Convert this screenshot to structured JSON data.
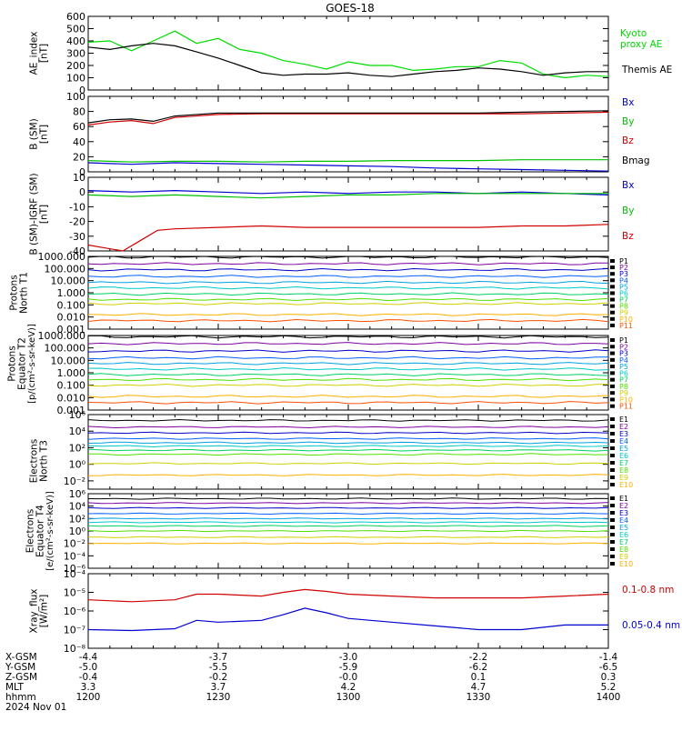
{
  "title": "GOES-18",
  "x_ticks": [
    "1200",
    "1230",
    "1300",
    "1330",
    "1400"
  ],
  "orbit_rows": [
    {
      "label": "X-GSM",
      "values": [
        "-4.4",
        "-3.7",
        "-3.0",
        "-2.2",
        "-1.4"
      ]
    },
    {
      "label": "Y-GSM",
      "values": [
        "-5.0",
        "-5.5",
        "-5.9",
        "-6.2",
        "-6.5"
      ]
    },
    {
      "label": "Z-GSM",
      "values": [
        "-0.4",
        "-0.2",
        "-0.0",
        "0.1",
        "0.3"
      ]
    },
    {
      "label": "MLT",
      "values": [
        "3.3",
        "3.7",
        "4.2",
        "4.7",
        "5.2"
      ]
    },
    {
      "label": "hhmm",
      "values": [
        "1200",
        "1230",
        "1300",
        "1330",
        "1400"
      ]
    }
  ],
  "date_label": "2024 Nov 01",
  "colors": {
    "band_colors": [
      "#000000",
      "#7f00a0",
      "#0000c8",
      "#0060ff",
      "#00a0e0",
      "#00c8c8",
      "#00d060",
      "#50e000",
      "#d0d000",
      "#ffb000",
      "#ff5000",
      "#d00000",
      "#a00000"
    ],
    "xray_long": "#d00000",
    "xray_short": "#0000d0",
    "bx": "#0000d0",
    "by": "#00c000",
    "bz": "#d00000",
    "bmag": "#000000",
    "ae_proxy": "#00dd00",
    "ae_themis": "#000000"
  },
  "chart_data": [
    {
      "type": "line",
      "ylabel": "AE_index\n[nT]",
      "yticks": [
        "600",
        "500",
        "400",
        "300",
        "200",
        "100",
        "0"
      ],
      "ylim": [
        0,
        600
      ],
      "series": [
        {
          "name": "Kyoto\nproxy AE",
          "color_key": "ae_proxy",
          "x": [
            0,
            5,
            10,
            15,
            20,
            25,
            30,
            35,
            40,
            45,
            50,
            55,
            60,
            65,
            70,
            75,
            80,
            85,
            90,
            95,
            100,
            105,
            110,
            115,
            120
          ],
          "values": [
            390,
            400,
            320,
            400,
            480,
            380,
            420,
            330,
            300,
            240,
            210,
            170,
            230,
            200,
            200,
            160,
            170,
            190,
            190,
            240,
            220,
            130,
            100,
            120,
            110
          ]
        },
        {
          "name": "Themis AE",
          "color_key": "ae_themis",
          "x": [
            0,
            5,
            10,
            15,
            20,
            25,
            30,
            35,
            40,
            45,
            50,
            55,
            60,
            65,
            70,
            75,
            80,
            85,
            90,
            95,
            100,
            105,
            110,
            115,
            120
          ],
          "values": [
            350,
            330,
            360,
            380,
            360,
            310,
            260,
            200,
            140,
            120,
            130,
            130,
            140,
            120,
            110,
            130,
            150,
            160,
            180,
            170,
            150,
            120,
            140,
            150,
            150
          ]
        }
      ]
    },
    {
      "type": "line",
      "ylabel": "B (SM)\n[nT]",
      "yticks": [
        "100",
        "80",
        "60",
        "40",
        "20",
        "0"
      ],
      "ylim": [
        0,
        100
      ],
      "series": [
        {
          "name": "Bx",
          "color_key": "bx",
          "x": [
            0,
            10,
            20,
            30,
            40,
            50,
            60,
            70,
            80,
            90,
            100,
            110,
            120
          ],
          "values": [
            12,
            10,
            12,
            11,
            10,
            9,
            8,
            7,
            5,
            4,
            3,
            2,
            1
          ]
        },
        {
          "name": "By",
          "color_key": "by",
          "x": [
            0,
            10,
            20,
            30,
            40,
            50,
            60,
            70,
            80,
            90,
            100,
            110,
            120
          ],
          "values": [
            15,
            13,
            14,
            14,
            13,
            14,
            14,
            15,
            15,
            15,
            16,
            16,
            16
          ]
        },
        {
          "name": "Bz",
          "color_key": "bz",
          "x": [
            0,
            5,
            10,
            15,
            20,
            30,
            40,
            50,
            60,
            70,
            80,
            90,
            100,
            110,
            120
          ],
          "values": [
            62,
            66,
            68,
            64,
            72,
            76,
            77,
            77,
            77,
            77,
            77,
            77,
            77,
            78,
            79
          ]
        },
        {
          "name": "Bmag",
          "color_key": "bmag",
          "x": [
            0,
            5,
            10,
            15,
            20,
            30,
            40,
            50,
            60,
            70,
            80,
            90,
            100,
            110,
            120
          ],
          "values": [
            65,
            69,
            70,
            67,
            74,
            78,
            78,
            78,
            78,
            78,
            78,
            78,
            79,
            80,
            81
          ]
        }
      ]
    },
    {
      "type": "line",
      "ylabel": "B (SM)-IGRF (SM)\n[nT]",
      "yticks": [
        "10",
        "0",
        "-10",
        "-20",
        "-30",
        "-40"
      ],
      "ylim": [
        -40,
        10
      ],
      "series": [
        {
          "name": "Bx",
          "color_key": "bx",
          "x": [
            0,
            10,
            20,
            30,
            40,
            50,
            60,
            70,
            80,
            90,
            100,
            110,
            120
          ],
          "values": [
            1,
            0,
            1,
            0,
            -1,
            0,
            -1,
            0,
            0,
            -1,
            0,
            -1,
            -2
          ]
        },
        {
          "name": "By",
          "color_key": "by",
          "x": [
            0,
            10,
            20,
            30,
            40,
            50,
            60,
            70,
            80,
            90,
            100,
            110,
            120
          ],
          "values": [
            -2,
            -3,
            -2,
            -3,
            -4,
            -3,
            -2,
            -2,
            -1,
            -1,
            -1,
            -1,
            -1
          ]
        },
        {
          "name": "Bz",
          "color_key": "bz",
          "x": [
            0,
            4,
            8,
            12,
            16,
            20,
            30,
            40,
            50,
            60,
            70,
            80,
            90,
            100,
            110,
            120
          ],
          "values": [
            -36,
            -38,
            -40,
            -33,
            -26,
            -25,
            -24,
            -23,
            -24,
            -24,
            -24,
            -24,
            -24,
            -23,
            -23,
            -22
          ]
        }
      ]
    },
    {
      "type": "line",
      "ylabel": "Protons\nNorth T1",
      "log": true,
      "ylim_exp": [
        -3,
        3
      ],
      "yticks": [
        "1000.000",
        "100.000",
        "10.000",
        "1.000",
        "0.100",
        "0.010",
        "0.001"
      ],
      "ytick_exps": [
        3,
        2,
        1,
        0,
        -1,
        -2,
        -3
      ],
      "legend": [
        "P1",
        "P2",
        "P3",
        "P4",
        "P5",
        "P6",
        "P7",
        "P8",
        "P9",
        "P10",
        "P11"
      ],
      "series_levels": [
        2.95,
        2.4,
        1.9,
        1.35,
        0.85,
        0.4,
        -0.1,
        -0.55,
        -0.9,
        -1.8,
        -2.3
      ]
    },
    {
      "type": "line",
      "ylabel": "Protons\nEquator T2",
      "log": true,
      "ylim_exp": [
        -3,
        3
      ],
      "yticks": [
        "1000.000",
        "100.000",
        "10.000",
        "1.000",
        "0.100",
        "0.010",
        "0.001"
      ],
      "ytick_exps": [
        3,
        2,
        1,
        0,
        -1,
        -2,
        -3
      ],
      "legend": [
        "P1",
        "P2",
        "P3",
        "P4",
        "P5",
        "P6",
        "P7",
        "P8",
        "P9",
        "P10",
        "P11"
      ],
      "series_levels": [
        2.9,
        2.35,
        1.75,
        1.2,
        0.75,
        0.3,
        -0.15,
        -0.55,
        -1.0,
        -1.9,
        -2.4
      ]
    },
    {
      "type": "line",
      "ylabel": "Electrons\nNorth T3",
      "log": true,
      "ylim_exp": [
        -3,
        6
      ],
      "yticks": [
        "10⁶",
        "10⁴",
        "10²",
        "10⁰",
        "10⁻²"
      ],
      "ytick_exps": [
        6,
        4,
        2,
        0,
        -2
      ],
      "legend": [
        "E1",
        "E2",
        "E3",
        "E4",
        "E5",
        "E6",
        "E7",
        "E8",
        "E9",
        "E10"
      ],
      "series_levels": [
        5.3,
        4.5,
        3.8,
        3.1,
        2.6,
        2.2,
        1.7,
        1.2,
        0.1,
        -1.3
      ]
    },
    {
      "type": "line",
      "ylabel": "Electrons\nEquator T4",
      "log": true,
      "ylim_exp": [
        -6,
        6
      ],
      "yticks": [
        "10⁶",
        "10⁴",
        "10²",
        "10⁰",
        "10⁻²",
        "10⁻⁴",
        "10⁻⁶"
      ],
      "ytick_exps": [
        6,
        4,
        2,
        0,
        -2,
        -4,
        -6
      ],
      "legend": [
        "E1",
        "E2",
        "E3",
        "E4",
        "E5",
        "E6",
        "E7",
        "E8",
        "E9",
        "E10"
      ],
      "series_levels": [
        5.2,
        4.5,
        3.7,
        2.8,
        2.0,
        1.4,
        0.8,
        0.0,
        -1.0,
        -2.0
      ]
    },
    {
      "type": "line",
      "ylabel": "Xray_flux\n[W/m²]",
      "log": true,
      "ylim_exp": [
        -8,
        -4
      ],
      "yticks": [
        "10⁻⁴",
        "10⁻⁵",
        "10⁻⁶",
        "10⁻⁷",
        "10⁻⁸"
      ],
      "ytick_exps": [
        -4,
        -5,
        -6,
        -7,
        -8
      ],
      "series": [
        {
          "name": "0.1-0.8 nm",
          "color_key": "xray_long",
          "x": [
            0,
            10,
            20,
            25,
            30,
            40,
            45,
            50,
            55,
            60,
            70,
            80,
            90,
            100,
            110,
            120
          ],
          "values": [
            -5.4,
            -5.5,
            -5.4,
            -5.1,
            -5.1,
            -5.2,
            -5.0,
            -4.85,
            -4.95,
            -5.1,
            -5.2,
            -5.3,
            -5.3,
            -5.3,
            -5.2,
            -5.1
          ]
        },
        {
          "name": "0.05-0.4 nm",
          "color_key": "xray_short",
          "x": [
            0,
            10,
            20,
            25,
            30,
            40,
            45,
            50,
            55,
            60,
            70,
            80,
            90,
            100,
            110,
            120
          ],
          "values": [
            -7.0,
            -7.05,
            -6.95,
            -6.5,
            -6.6,
            -6.5,
            -6.2,
            -5.85,
            -6.1,
            -6.4,
            -6.6,
            -6.8,
            -7.0,
            -7.0,
            -6.75,
            -6.75
          ]
        }
      ]
    }
  ],
  "ylabel_extra": {
    "protons_units": "[p/(cm²-s-sr-keV)]",
    "electrons_units": "[e/(cm²-s-sr-keV)]"
  }
}
